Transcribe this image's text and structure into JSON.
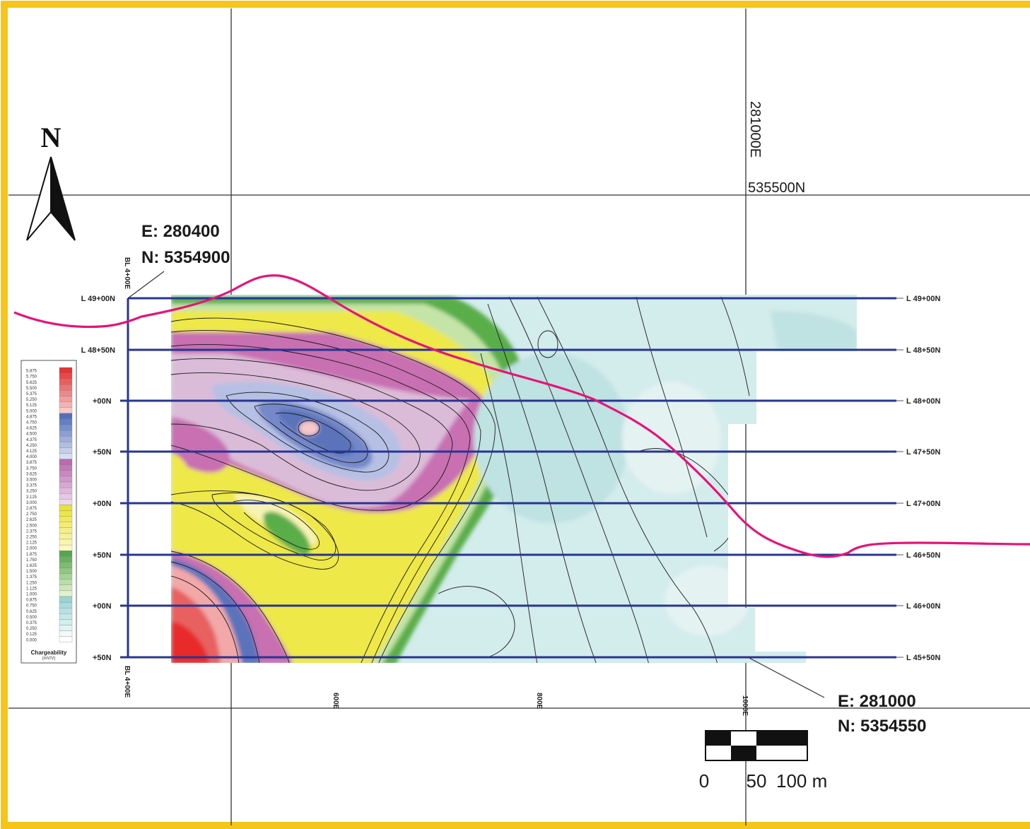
{
  "grid_labels": {
    "easting": "281000E",
    "northing": "535500N"
  },
  "north_arrow": {
    "label": "N",
    "icon": "north-arrow-icon"
  },
  "corners": {
    "northwest": {
      "e": "E: 280400",
      "n": "N: 5354900"
    },
    "southeast": {
      "e": "E: 281000",
      "n": "N: 5354550"
    }
  },
  "baseline": {
    "top": "BL 4+00E",
    "bottom": "BL 4+00E"
  },
  "lines": [
    {
      "left": "L 49+00N",
      "right": "L 49+00N"
    },
    {
      "left": "L 48+50N",
      "right": "L 48+50N"
    },
    {
      "left": "+00N",
      "right": "L 48+00N"
    },
    {
      "left": "+50N",
      "right": "L 47+50N"
    },
    {
      "left": "+00N",
      "right": "L 47+00N"
    },
    {
      "left": "+50N",
      "right": "L 46+50N"
    },
    {
      "left": "+00N",
      "right": "L 46+00N"
    },
    {
      "left": "+50N",
      "right": "L 45+50N"
    }
  ],
  "x_ticks": [
    "600E",
    "800E",
    "1000E"
  ],
  "legend": {
    "title": "Chargeability",
    "units": "(mV/V)",
    "values": [
      "5.875",
      "5.750",
      "5.625",
      "5.500",
      "5.375",
      "5.250",
      "5.125",
      "5.000",
      "4.875",
      "4.750",
      "4.625",
      "4.500",
      "4.375",
      "4.250",
      "4.125",
      "4.000",
      "3.875",
      "3.750",
      "3.625",
      "3.500",
      "3.375",
      "3.250",
      "3.125",
      "3.000",
      "2.875",
      "2.750",
      "2.625",
      "2.500",
      "2.375",
      "2.250",
      "2.125",
      "2.000",
      "1.875",
      "1.750",
      "1.625",
      "1.500",
      "1.375",
      "1.250",
      "1.125",
      "1.000",
      "0.875",
      "0.750",
      "0.625",
      "0.500",
      "0.375",
      "0.250",
      "0.125",
      "0.000"
    ]
  },
  "scale_bar": {
    "labels": [
      "0",
      "50",
      "100 m"
    ]
  },
  "colors": {
    "frame": "#f5c518",
    "survey_line": "#283593",
    "boundary": "#e6137a",
    "low": "#d3ecec",
    "mid_green": "#5aae4a",
    "mid_yellow": "#eee84a",
    "mid_pink": "#c86fb2",
    "high_blue": "#5a73bb",
    "top_red": "#e82a2a"
  }
}
